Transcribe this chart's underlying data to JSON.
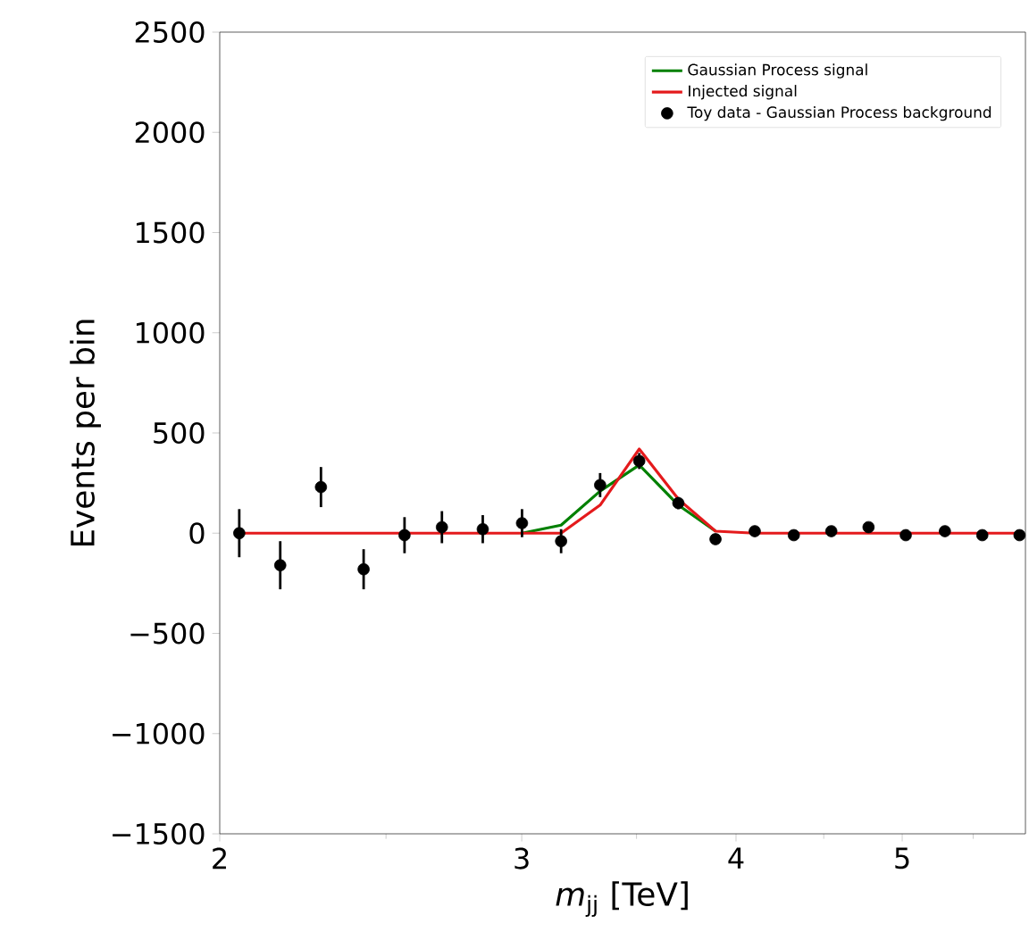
{
  "chart_data": {
    "type": "scatter",
    "xlabel": "*m*$_{jj}$ [TeV]",
    "ylabel": "Events per bin",
    "log": "x",
    "xlim": [
      2,
      5.9
    ],
    "xticks": [
      2,
      3,
      4,
      5
    ],
    "ylim": [
      -1500,
      2500
    ],
    "yticks": [
      {
        "value": -1500,
        "label": "−1500"
      },
      {
        "value": -1000,
        "label": "−1000"
      },
      {
        "value": -500,
        "label": "−500"
      },
      0,
      500,
      1000,
      1500,
      2000,
      2500
    ],
    "legend": "top right",
    "grid": false,
    "x": [
      2.053,
      2.169,
      2.291,
      2.426,
      2.563,
      2.695,
      2.847,
      3.001,
      3.163,
      3.333,
      3.513,
      3.702,
      3.892,
      4.102,
      4.323,
      4.546,
      4.779,
      5.024,
      5.295,
      5.568,
      5.853
    ],
    "series": [
      {
        "name": "Gaussian Process signal",
        "type": "line",
        "color": "#008000",
        "marker": "none",
        "values": [
          null,
          null,
          null,
          null,
          null,
          null,
          null,
          0,
          40,
          210,
          340,
          140,
          10,
          null,
          null,
          null,
          null,
          null,
          null,
          null,
          null
        ]
      },
      {
        "name": "Injected signal",
        "type": "line",
        "color": "#e41a1c",
        "marker": "none",
        "values": [
          0,
          0,
          0,
          0,
          0,
          0,
          0,
          0,
          0,
          140,
          420,
          170,
          10,
          0,
          0,
          0,
          0,
          0,
          0,
          0,
          0
        ]
      },
      {
        "name": "Toy data - Gaussian Process background",
        "color": "#000000",
        "marker": "circle",
        "values": [
          0,
          -160,
          230,
          -180,
          -10,
          30,
          20,
          50,
          -40,
          240,
          360,
          150,
          -30,
          10,
          -10,
          10,
          30,
          -10,
          10,
          -10,
          -10
        ],
        "errors": [
          120,
          120,
          100,
          100,
          90,
          80,
          70,
          70,
          60,
          60,
          40,
          30,
          20,
          20,
          20,
          20,
          20,
          20,
          20,
          20,
          20
        ]
      }
    ]
  }
}
